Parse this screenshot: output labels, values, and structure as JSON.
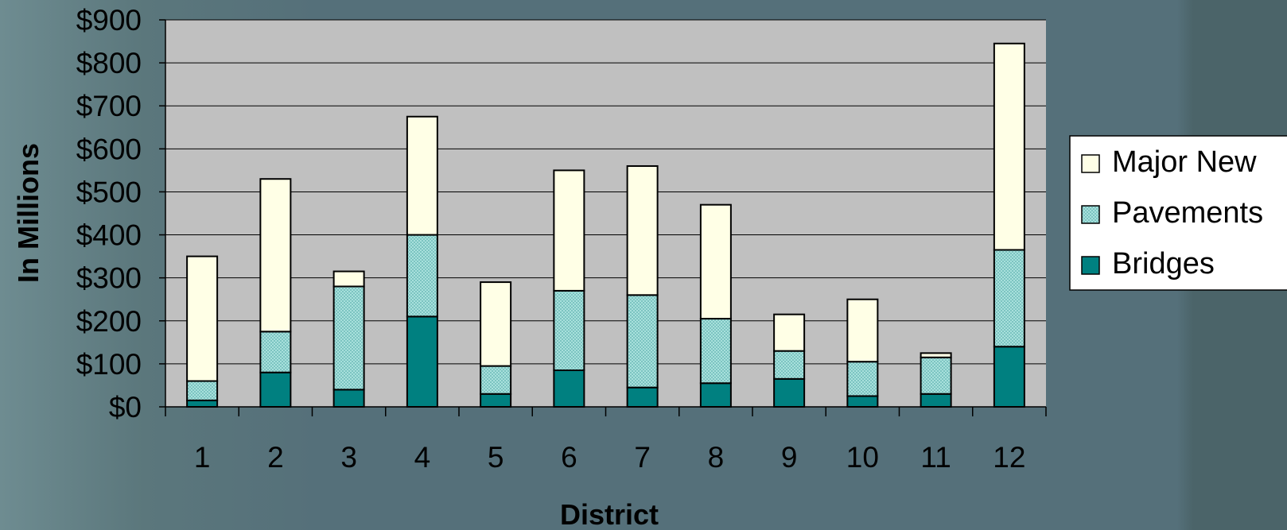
{
  "chart_data": {
    "type": "bar",
    "stacked": true,
    "categories": [
      "1",
      "2",
      "3",
      "4",
      "5",
      "6",
      "7",
      "8",
      "9",
      "10",
      "11",
      "12"
    ],
    "series": [
      {
        "name": "Bridges",
        "color": "#008080",
        "pattern": "solid",
        "values": [
          15,
          80,
          40,
          210,
          30,
          85,
          45,
          55,
          65,
          25,
          30,
          140
        ]
      },
      {
        "name": "Pavements",
        "color": "#9dd9d6",
        "pattern": "checker",
        "values": [
          45,
          95,
          240,
          190,
          65,
          185,
          215,
          150,
          65,
          80,
          85,
          225
        ]
      },
      {
        "name": "Major New",
        "color": "#ffffe6",
        "pattern": "solid",
        "values": [
          290,
          355,
          35,
          275,
          195,
          280,
          300,
          265,
          85,
          145,
          10,
          480
        ]
      }
    ],
    "xlabel": "District",
    "ylabel": "In Millions",
    "ylim": [
      0,
      900
    ],
    "yticks": [
      0,
      100,
      200,
      300,
      400,
      500,
      600,
      700,
      800,
      900
    ],
    "ytick_labels": [
      "$0",
      "$100",
      "$200",
      "$300",
      "$400",
      "$500",
      "$600",
      "$700",
      "$800",
      "$900"
    ],
    "grid": true,
    "legend_position": "right",
    "legend_order": [
      "Major New",
      "Pavements",
      "Bridges"
    ],
    "plot_background": "#c0c0c0"
  }
}
